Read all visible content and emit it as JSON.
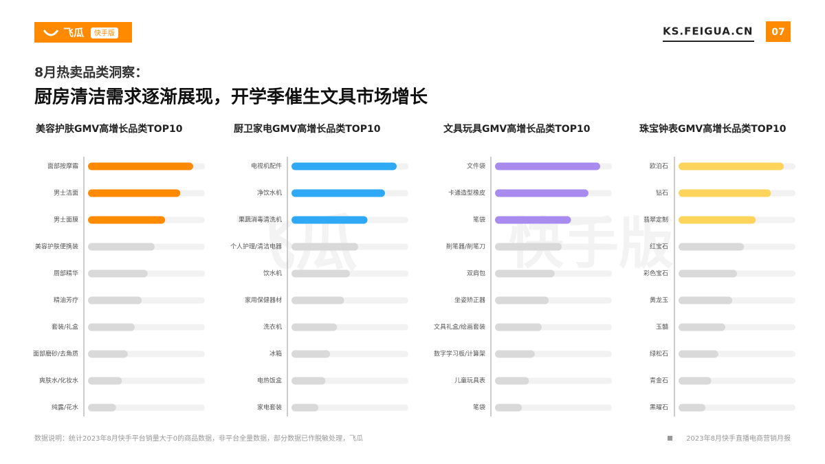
{
  "header": {
    "logo": "飞瓜",
    "logo_badge": "快手版",
    "site": "KS.FEIGUA.CN",
    "page": "07",
    "subtitle": "8月热卖品类洞察：",
    "title": "厨房清洁需求逐渐展现，开学季催生文具市场增长"
  },
  "watermark": [
    "飞瓜",
    "快手版"
  ],
  "chart_data": [
    {
      "type": "bar",
      "title": "美容护肤GMV高增长品类TOP10",
      "xlim": [
        0,
        100
      ],
      "categories": [
        "面部按摩霜",
        "男士洁面",
        "男士面膜",
        "美容护肤便携装",
        "唇部精华",
        "精油芳疗",
        "套装/礼盒",
        "面部磨砂/去角质",
        "爽肤水/化妆水",
        "纯露/花水"
      ],
      "values": [
        90,
        79,
        66,
        57,
        51,
        46,
        40,
        34,
        29,
        24
      ],
      "colors": [
        "#ff8a00",
        "#ff8a00",
        "#ff8a00",
        "#d9d9d9",
        "#d9d9d9",
        "#d9d9d9",
        "#d9d9d9",
        "#d9d9d9",
        "#d9d9d9",
        "#d9d9d9"
      ]
    },
    {
      "type": "bar",
      "title": "厨卫家电GMV高增长品类TOP10",
      "xlim": [
        0,
        100
      ],
      "categories": [
        "电视机配件",
        "净饮水机",
        "果蔬消毒清洗机",
        "个人护理/清洁电器",
        "饮水机",
        "家用保健器材",
        "洗衣机",
        "冰箱",
        "电热饭盒",
        "家电套装"
      ],
      "values": [
        90,
        80,
        65,
        57,
        50,
        45,
        39,
        33,
        29,
        23
      ],
      "colors": [
        "#2fa8f5",
        "#2fa8f5",
        "#2fa8f5",
        "#d9d9d9",
        "#d9d9d9",
        "#d9d9d9",
        "#d9d9d9",
        "#d9d9d9",
        "#d9d9d9",
        "#d9d9d9"
      ]
    },
    {
      "type": "bar",
      "title": "文具玩具GMV高增长品类TOP10",
      "xlim": [
        0,
        100
      ],
      "categories": [
        "文件袋",
        "卡通造型橡皮",
        "笔袋",
        "削笔器/削笔刀",
        "双肩包",
        "坐姿矫正器",
        "文具礼盒/绘画套装",
        "数字学习板/计算架",
        "儿童玩具表",
        "笔袋"
      ],
      "values": [
        90,
        80,
        65,
        57,
        51,
        46,
        40,
        34,
        29,
        23
      ],
      "colors": [
        "#a98bf0",
        "#a98bf0",
        "#a98bf0",
        "#d9d9d9",
        "#d9d9d9",
        "#d9d9d9",
        "#d9d9d9",
        "#d9d9d9",
        "#d9d9d9",
        "#d9d9d9"
      ]
    },
    {
      "type": "bar",
      "title": "珠宝钟表GMV高增长品类TOP10",
      "xlim": [
        0,
        100
      ],
      "categories": [
        "欧泊石",
        "钻石",
        "翡翠定制",
        "红宝石",
        "彩色宝石",
        "黄龙玉",
        "玉髓",
        "绿松石",
        "青金石",
        "黑曜石"
      ],
      "values": [
        90,
        79,
        66,
        56,
        50,
        46,
        40,
        34,
        28,
        23
      ],
      "colors": [
        "#ffd45c",
        "#ffd45c",
        "#ffd45c",
        "#d9d9d9",
        "#d9d9d9",
        "#d9d9d9",
        "#d9d9d9",
        "#d9d9d9",
        "#d9d9d9",
        "#d9d9d9"
      ]
    }
  ],
  "footer": {
    "note": "数据说明：统计2023年8月快手平台销量大于0的商品数据，非平台全量数据，部分数据已作脱敏处理，飞瓜",
    "source": "2023年8月快手直播电商营销月报"
  }
}
